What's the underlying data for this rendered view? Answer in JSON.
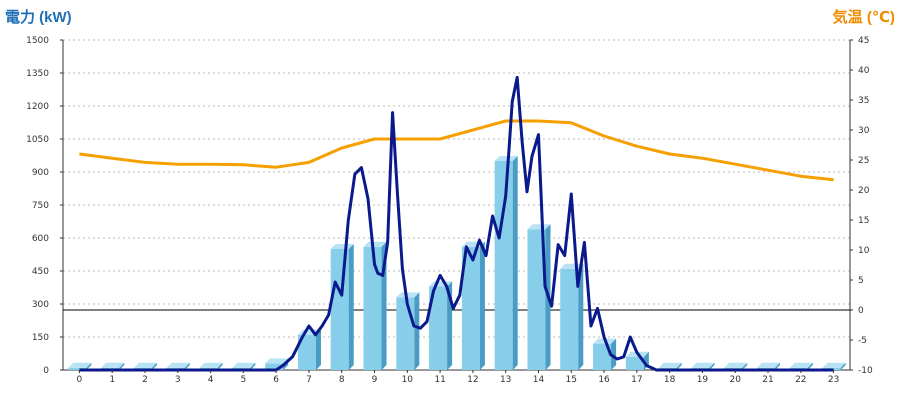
{
  "chart_data": {
    "type": "bar",
    "left_title": "電力 (kW)",
    "right_title": "気温 (℃)",
    "colors": {
      "left_title": "#1f6fb5",
      "right_title": "#f08c00",
      "bar": "#87ceeb",
      "bar_side": "#4a9cc4",
      "power_line": "#0a1a8c",
      "temperature_line": "#f5a000",
      "grid": "#bbbbbb",
      "zero_line": "#000000"
    },
    "x_ticks": [
      "0",
      "1",
      "2",
      "3",
      "4",
      "5",
      "6",
      "7",
      "8",
      "9",
      "10",
      "11",
      "12",
      "13",
      "14",
      "15",
      "16",
      "17",
      "18",
      "19",
      "20",
      "21",
      "22",
      "23"
    ],
    "y_left": {
      "min": 0,
      "max": 1500,
      "ticks": [
        "0",
        "150",
        "300",
        "450",
        "600",
        "750",
        "900",
        "1050",
        "1200",
        "1350",
        "1500"
      ]
    },
    "y_right": {
      "min": -10,
      "max": 45,
      "ticks": [
        "-10",
        "-5",
        "0",
        "5",
        "10",
        "15",
        "20",
        "25",
        "30",
        "35",
        "40",
        "45"
      ]
    },
    "grid": true,
    "bars": {
      "hours": [
        0,
        1,
        2,
        3,
        4,
        5,
        6,
        7,
        8,
        9,
        10,
        11,
        12,
        13,
        14,
        15,
        16,
        17,
        18,
        19,
        20,
        21,
        22,
        23
      ],
      "values": [
        10,
        10,
        10,
        10,
        10,
        10,
        30,
        160,
        550,
        560,
        330,
        380,
        560,
        950,
        640,
        460,
        120,
        60,
        10,
        10,
        10,
        10,
        10,
        10
      ]
    },
    "power_line": {
      "x": [
        0,
        1,
        2,
        3,
        4,
        5,
        6,
        6.2,
        6.5,
        6.8,
        7,
        7.2,
        7.4,
        7.6,
        7.8,
        8,
        8.2,
        8.4,
        8.6,
        8.8,
        9,
        9.1,
        9.25,
        9.4,
        9.55,
        9.7,
        9.85,
        10,
        10.2,
        10.4,
        10.6,
        10.8,
        11,
        11.2,
        11.4,
        11.6,
        11.8,
        12,
        12.2,
        12.4,
        12.6,
        12.8,
        13,
        13.1,
        13.2,
        13.35,
        13.5,
        13.65,
        13.8,
        14,
        14.2,
        14.4,
        14.6,
        14.8,
        15,
        15.2,
        15.4,
        15.6,
        15.8,
        16,
        16.2,
        16.4,
        16.6,
        16.8,
        17,
        17.3,
        17.6,
        18,
        19,
        20,
        21,
        22,
        23
      ],
      "y": [
        0,
        0,
        0,
        0,
        0,
        0,
        0,
        20,
        60,
        150,
        200,
        160,
        200,
        250,
        400,
        340,
        680,
        890,
        920,
        780,
        480,
        440,
        430,
        580,
        1170,
        800,
        460,
        300,
        200,
        190,
        220,
        360,
        430,
        380,
        280,
        340,
        560,
        500,
        590,
        520,
        700,
        600,
        790,
        1000,
        1220,
        1330,
        1040,
        810,
        970,
        1070,
        380,
        290,
        570,
        520,
        800,
        380,
        580,
        200,
        280,
        150,
        70,
        50,
        60,
        150,
        80,
        20,
        0,
        0,
        0,
        0,
        0,
        0,
        0
      ]
    },
    "temperature_line": {
      "x": [
        0,
        1,
        2,
        3,
        4,
        5,
        6,
        7,
        8,
        9,
        10,
        11,
        12,
        13,
        14,
        15,
        16,
        17,
        18,
        19,
        20,
        21,
        22,
        23
      ],
      "y": [
        26,
        25.3,
        24.6,
        24.3,
        24.3,
        24.2,
        23.8,
        24.6,
        27,
        28.5,
        28.5,
        28.5,
        30,
        31.5,
        31.5,
        31.2,
        29,
        27.3,
        26,
        25.3,
        24.3,
        23.3,
        22.3,
        21.7
      ]
    }
  }
}
